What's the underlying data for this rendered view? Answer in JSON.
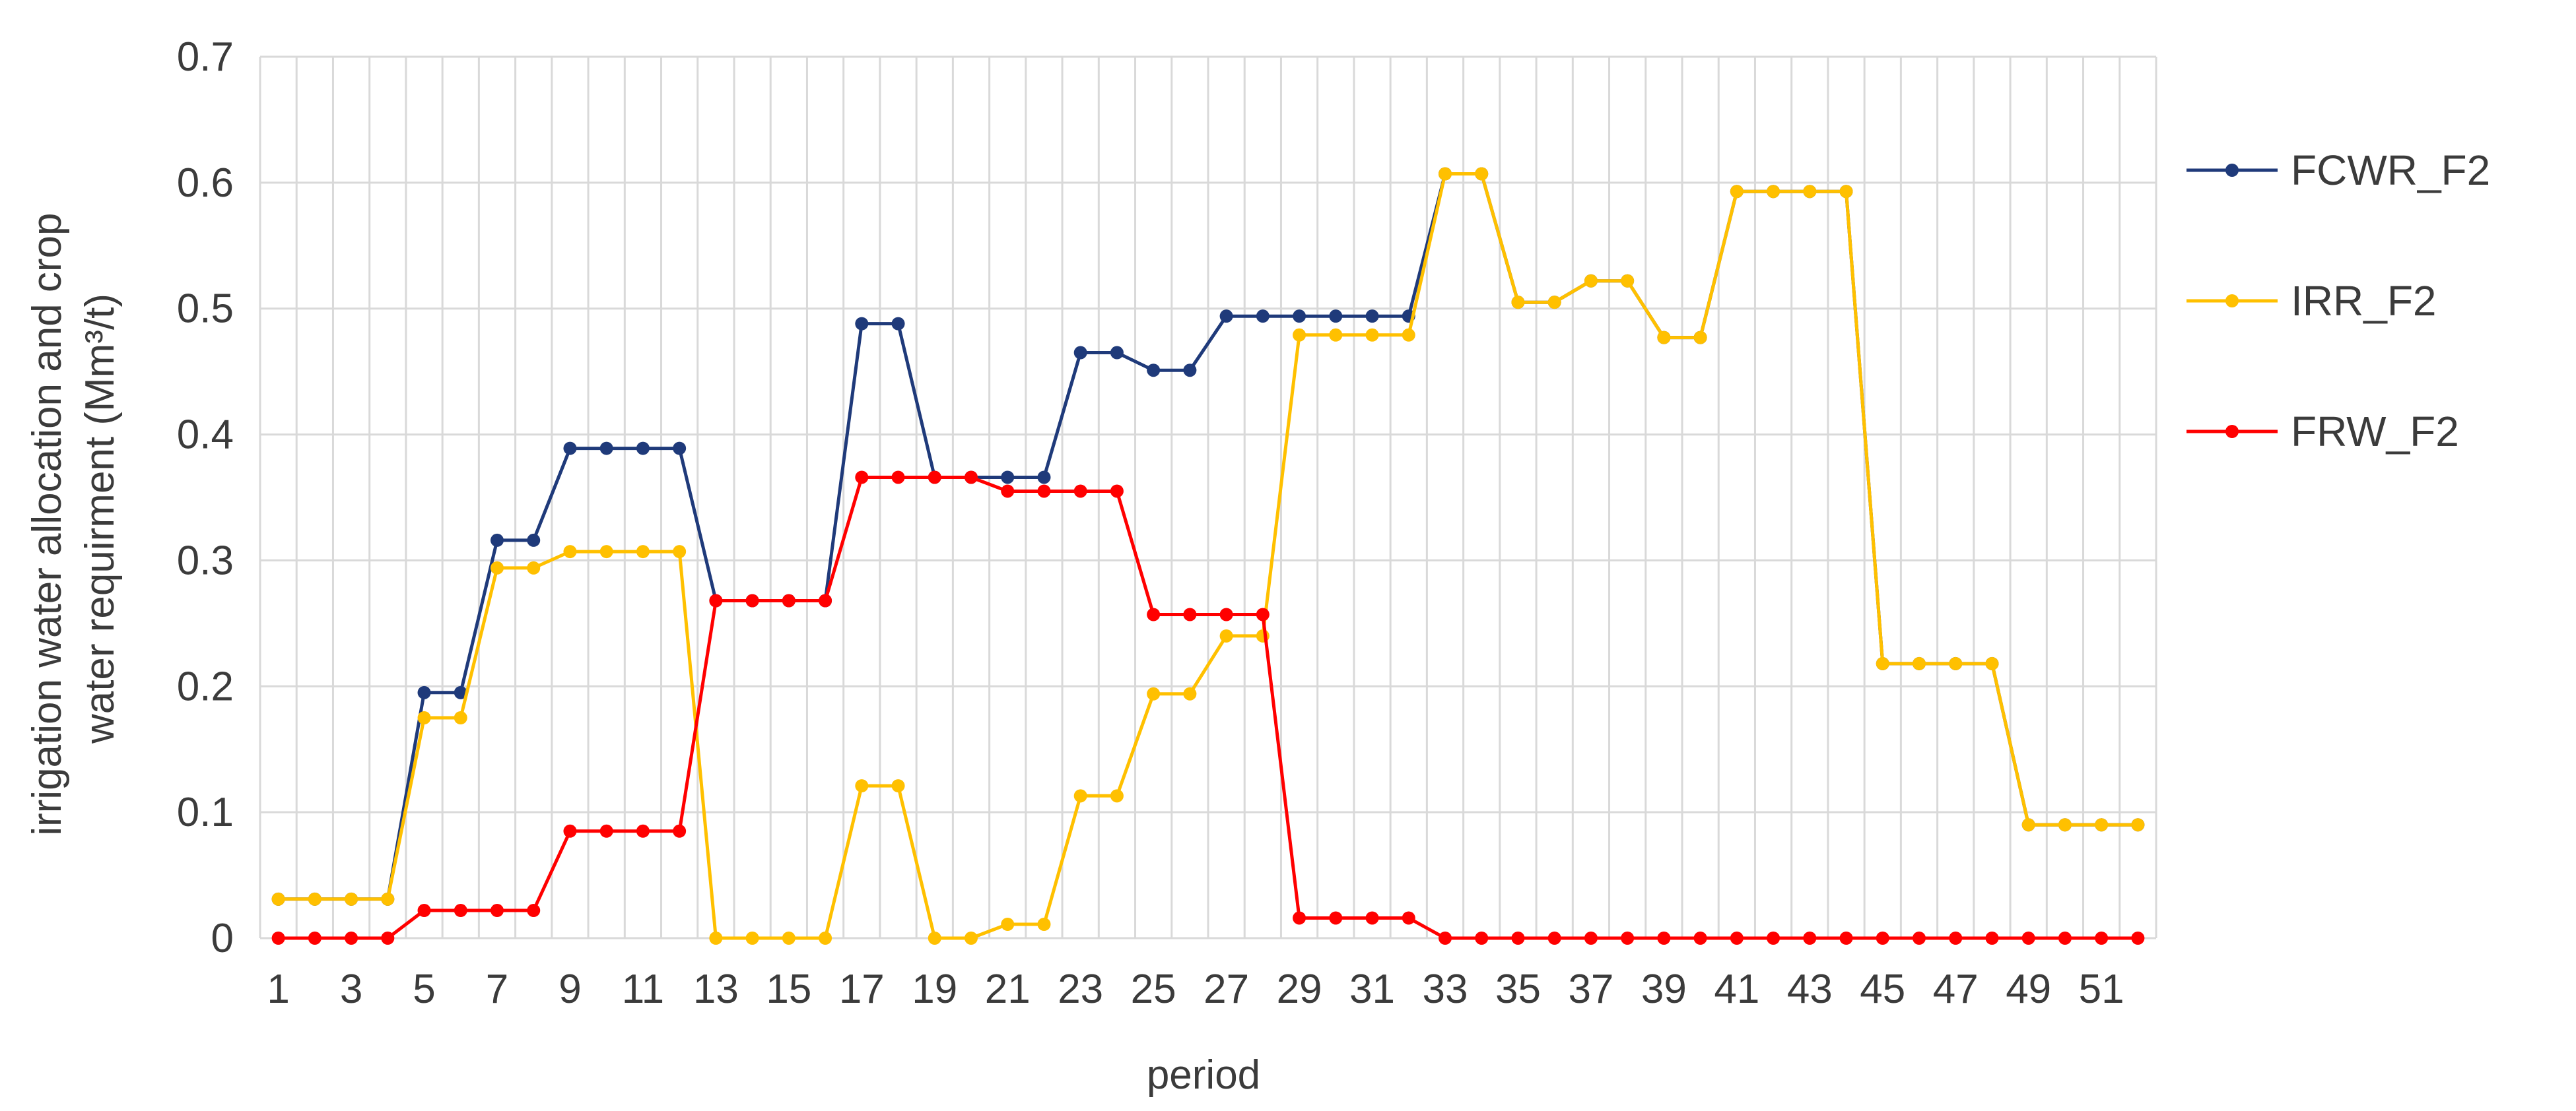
{
  "chart_data": {
    "type": "line",
    "title": "",
    "xlabel": "period",
    "ylabel_lines": [
      "irrigation water allocation and crop",
      "water requirment (Mm³/t)"
    ],
    "ylim": [
      0,
      0.7
    ],
    "yticks": [
      "0",
      "0.1",
      "0.2",
      "0.3",
      "0.4",
      "0.5",
      "0.6",
      "0.7"
    ],
    "ytick_values": [
      0,
      0.1,
      0.2,
      0.3,
      0.4,
      0.5,
      0.6,
      0.7
    ],
    "xlim": [
      1,
      52
    ],
    "x_tick_labels": [
      "1",
      "3",
      "5",
      "7",
      "9",
      "11",
      "13",
      "15",
      "17",
      "19",
      "21",
      "23",
      "25",
      "27",
      "29",
      "31",
      "33",
      "35",
      "37",
      "39",
      "41",
      "43",
      "45",
      "47",
      "49",
      "51"
    ],
    "x_tick_values": [
      1,
      3,
      5,
      7,
      9,
      11,
      13,
      15,
      17,
      19,
      21,
      23,
      25,
      27,
      29,
      31,
      33,
      35,
      37,
      39,
      41,
      43,
      45,
      47,
      49,
      51
    ],
    "grid": true,
    "legend_position": "right",
    "x": [
      1,
      2,
      3,
      4,
      5,
      6,
      7,
      8,
      9,
      10,
      11,
      12,
      13,
      14,
      15,
      16,
      17,
      18,
      19,
      20,
      21,
      22,
      23,
      24,
      25,
      26,
      27,
      28,
      29,
      30,
      31,
      32,
      33,
      34,
      35,
      36,
      37,
      38,
      39,
      40,
      41,
      42,
      43,
      44,
      45,
      46,
      47,
      48,
      49,
      50,
      51,
      52
    ],
    "series": [
      {
        "name": "FCWR_F2",
        "color": "#1f3a7a",
        "values": [
          0.031,
          0.031,
          0.031,
          0.031,
          0.195,
          0.195,
          0.316,
          0.316,
          0.389,
          0.389,
          0.389,
          0.389,
          0.268,
          0.268,
          0.268,
          0.268,
          0.488,
          0.488,
          0.366,
          0.366,
          0.366,
          0.366,
          0.465,
          0.465,
          0.451,
          0.451,
          0.494,
          0.494,
          0.494,
          0.494,
          0.494,
          0.494,
          0.607,
          0.607,
          0.505,
          0.505,
          0.522,
          0.522,
          0.477,
          0.477,
          0.593,
          0.593,
          0.593,
          0.593,
          0.218,
          0.218,
          0.218,
          0.218,
          0.09,
          0.09,
          0.09,
          0.09
        ]
      },
      {
        "name": "IRR_F2",
        "color": "#ffc000",
        "values": [
          0.031,
          0.031,
          0.031,
          0.031,
          0.175,
          0.175,
          0.294,
          0.294,
          0.307,
          0.307,
          0.307,
          0.307,
          0.0,
          0.0,
          0.0,
          0.0,
          0.121,
          0.121,
          0.0,
          0.0,
          0.011,
          0.011,
          0.113,
          0.113,
          0.194,
          0.194,
          0.24,
          0.24,
          0.479,
          0.479,
          0.479,
          0.479,
          0.607,
          0.607,
          0.505,
          0.505,
          0.522,
          0.522,
          0.477,
          0.477,
          0.593,
          0.593,
          0.593,
          0.593,
          0.218,
          0.218,
          0.218,
          0.218,
          0.09,
          0.09,
          0.09,
          0.09
        ]
      },
      {
        "name": "FRW_F2",
        "color": "#ff0000",
        "values": [
          0.0,
          0.0,
          0.0,
          0.0,
          0.022,
          0.022,
          0.022,
          0.022,
          0.085,
          0.085,
          0.085,
          0.085,
          0.268,
          0.268,
          0.268,
          0.268,
          0.366,
          0.366,
          0.366,
          0.366,
          0.355,
          0.355,
          0.355,
          0.355,
          0.257,
          0.257,
          0.257,
          0.257,
          0.016,
          0.016,
          0.016,
          0.016,
          0.0,
          0.0,
          0.0,
          0.0,
          0.0,
          0.0,
          0.0,
          0.0,
          0.0,
          0.0,
          0.0,
          0.0,
          0.0,
          0.0,
          0.0,
          0.0,
          0.0,
          0.0,
          0.0,
          0.0
        ]
      }
    ]
  }
}
